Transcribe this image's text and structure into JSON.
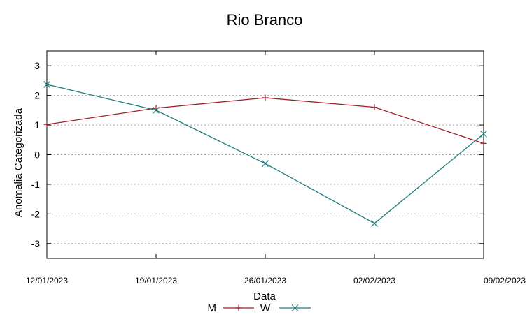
{
  "chart_data": {
    "type": "line",
    "title": "Rio Branco",
    "xlabel": "Data",
    "ylabel": "Anomalia Categorizada",
    "categories": [
      "12/01/2023",
      "19/01/2023",
      "26/01/2023",
      "02/02/2023",
      "09/02/2023"
    ],
    "ylim": [
      -3.5,
      3.5
    ],
    "yticks": [
      "3",
      "2",
      "1",
      "0",
      "-1",
      "-2",
      "-3"
    ],
    "grid": true,
    "legend_position": "bottom",
    "series": [
      {
        "name": "M",
        "values": [
          1.02,
          1.57,
          1.92,
          1.6,
          0.38
        ],
        "color": "#a01e2a",
        "marker": "plus"
      },
      {
        "name": "W",
        "values": [
          2.37,
          1.5,
          -0.3,
          -2.32,
          0.7
        ],
        "color": "#1e7d7d",
        "marker": "cross"
      }
    ]
  }
}
